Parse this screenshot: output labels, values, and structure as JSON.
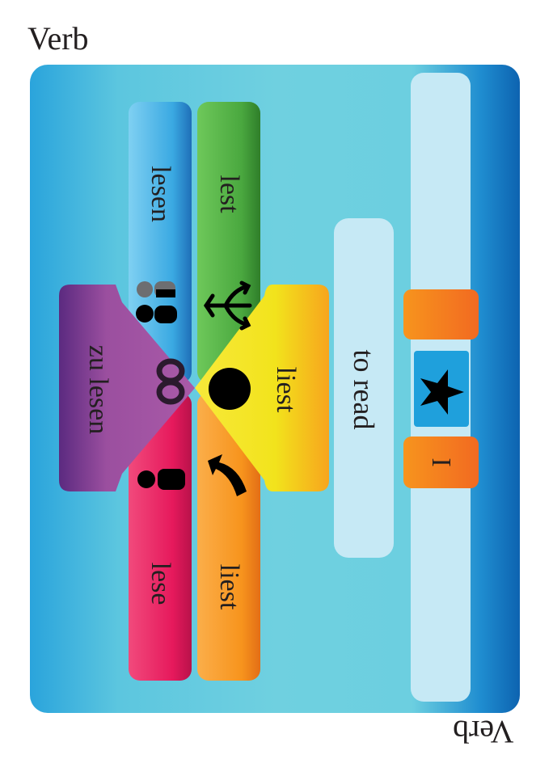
{
  "card": {
    "title": "Verb",
    "title_mirrored": "Verb"
  },
  "forms": {
    "infinitive": "lesen",
    "third_plural": "lest",
    "zu_infinitive": "zu lesen",
    "third_singular": "liest",
    "first_singular": "lese",
    "second_singular": "liest"
  },
  "translation": "to read",
  "pronoun": "I",
  "colors": {
    "blue": "#3aa9e2",
    "green": "#52b848",
    "purple": "#9b4f9f",
    "yellow": "#f2e31c",
    "pink": "#e6195c",
    "orange": "#f7941d"
  },
  "icons": [
    "two-people-icon",
    "arrows-split-icon",
    "infinity-icon",
    "dot-icon",
    "single-person-icon",
    "curved-arrow-icon",
    "star-icon"
  ]
}
